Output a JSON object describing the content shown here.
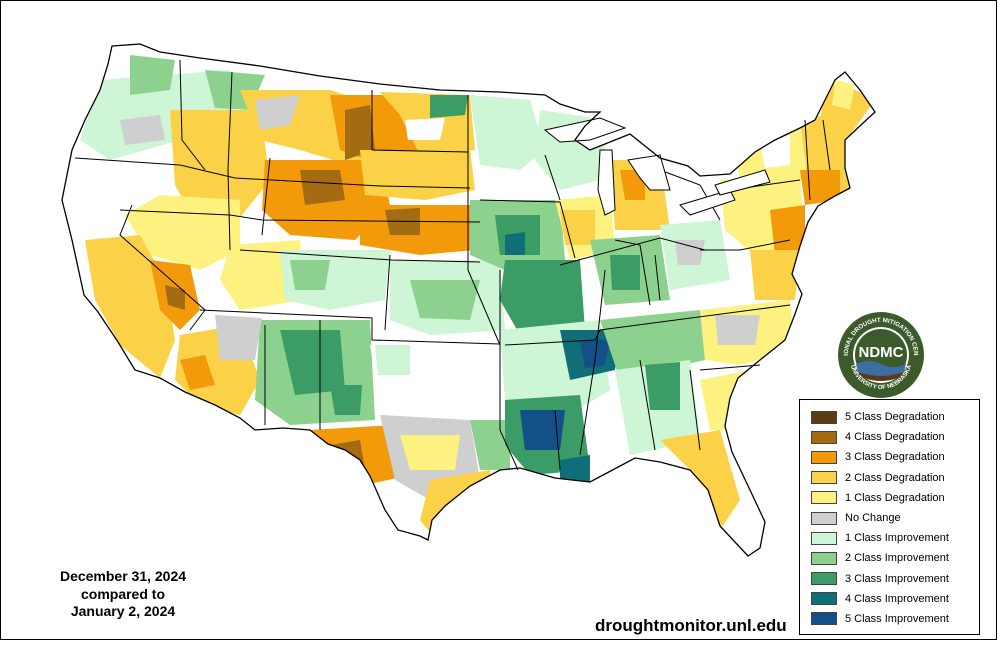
{
  "colors": {
    "deg5": "#5c3a14",
    "deg4": "#a36b12",
    "deg3": "#f39a0b",
    "deg2": "#fbd247",
    "deg1": "#fdf280",
    "nochange": "#cfcfcf",
    "imp1": "#cdf5d6",
    "imp2": "#8dd18f",
    "imp3": "#3b9c65",
    "imp4": "#0f6e78",
    "imp5": "#134f88"
  },
  "legend": {
    "items": [
      {
        "label": "5 Class Degradation",
        "color": "#5c3a14"
      },
      {
        "label": "4 Class Degradation",
        "color": "#a36b12"
      },
      {
        "label": "3 Class Degradation",
        "color": "#f39a0b"
      },
      {
        "label": "2 Class Degradation",
        "color": "#fbd247"
      },
      {
        "label": "1 Class Degradation",
        "color": "#fdf280"
      },
      {
        "label": "No Change",
        "color": "#cfcfcf"
      },
      {
        "label": "1 Class Improvement",
        "color": "#cdf5d6"
      },
      {
        "label": "2 Class Improvement",
        "color": "#8dd18f"
      },
      {
        "label": "3 Class Improvement",
        "color": "#3b9c65"
      },
      {
        "label": "4 Class Improvement",
        "color": "#0f6e78"
      },
      {
        "label": "5 Class Improvement",
        "color": "#134f88"
      }
    ]
  },
  "dates": {
    "line1": "December 31, 2024",
    "line2": "compared to",
    "line3": "January 2, 2024"
  },
  "website": "droughtmonitor.unl.edu",
  "logo": {
    "acronym": "NDMC",
    "ring_top": "NATIONAL DROUGHT MITIGATION CENTER",
    "ring_bottom": "UNIVERSITY OF NEBRASKA",
    "colors": {
      "ring": "#ffffff",
      "inner": "#3c5a2a",
      "water": "#3a6ea5",
      "earth": "#5c3a14"
    }
  }
}
